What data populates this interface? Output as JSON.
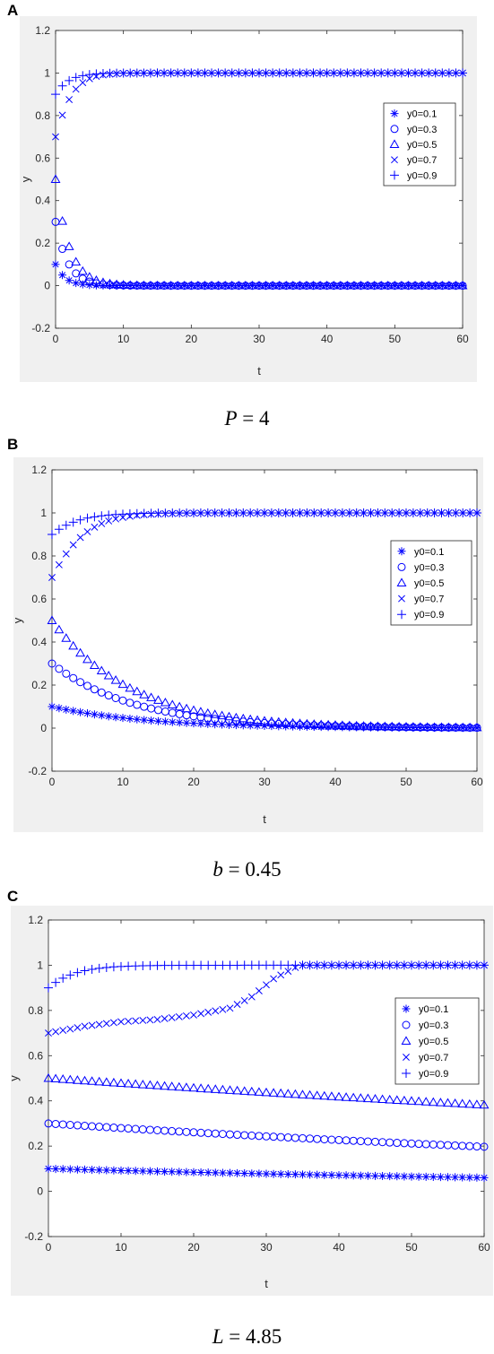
{
  "panels": [
    {
      "letter": "A",
      "caption_var": "P",
      "caption_rest": " = 4"
    },
    {
      "letter": "B",
      "caption_var": "b",
      "caption_rest": " = 0.45"
    },
    {
      "letter": "C",
      "caption_var": "L",
      "caption_rest": " = 4.85"
    }
  ],
  "colors": {
    "marker": "#0000ff",
    "figure_bg": "#f0f0f0",
    "axes_bg": "#ffffff",
    "axis": "#262626"
  },
  "chart_data": [
    {
      "type": "scatter",
      "xlabel": "t",
      "ylabel": "y",
      "xlim": [
        0,
        60
      ],
      "ylim": [
        -0.2,
        1.2
      ],
      "xticks": [
        0,
        10,
        20,
        30,
        40,
        50,
        60
      ],
      "yticks": [
        -0.2,
        0,
        0.2,
        0.4,
        0.6,
        0.8,
        1,
        1.2
      ],
      "ytick_labels": [
        "-0.2",
        "0",
        "0.2",
        "0.4",
        "0.6",
        "0.8",
        "1",
        "1.2"
      ],
      "grid": false,
      "legend_position": "right-middle",
      "x": {
        "start": 0,
        "step": 1,
        "count": 61
      },
      "series": [
        {
          "name": "y0=0.1",
          "marker": "asterisk",
          "model": {
            "y0": 0.1,
            "r": 0.7,
            "target": 0
          }
        },
        {
          "name": "y0=0.3",
          "marker": "circle",
          "model": {
            "y0": 0.3,
            "r": 0.55,
            "target": 0
          }
        },
        {
          "name": "y0=0.5",
          "marker": "triangle",
          "model": {
            "y0": 0.5,
            "r": 0.5,
            "target": 0
          }
        },
        {
          "name": "y0=0.7",
          "marker": "x",
          "model": {
            "y0": 0.7,
            "r": 0.55,
            "target": 1
          }
        },
        {
          "name": "y0=0.9",
          "marker": "plus",
          "model": {
            "y0": 0.9,
            "r": 0.55,
            "target": 1
          }
        }
      ]
    },
    {
      "type": "scatter",
      "xlabel": "t",
      "ylabel": "y",
      "xlim": [
        0,
        60
      ],
      "ylim": [
        -0.2,
        1.2
      ],
      "xticks": [
        0,
        10,
        20,
        30,
        40,
        50,
        60
      ],
      "yticks": [
        -0.2,
        0,
        0.2,
        0.4,
        0.6,
        0.8,
        1,
        1.2
      ],
      "ytick_labels": [
        "-0.2",
        "0",
        "0.2",
        "0.4",
        "0.6",
        "0.8",
        "1",
        "1.2"
      ],
      "grid": false,
      "legend_position": "right-middle",
      "x": {
        "start": 0,
        "step": 1,
        "count": 61
      },
      "series": [
        {
          "name": "y0=0.1",
          "marker": "asterisk",
          "model": {
            "y0": 0.1,
            "r": 0.075,
            "target": 0
          }
        },
        {
          "name": "y0=0.3",
          "marker": "circle",
          "model": {
            "y0": 0.3,
            "r": 0.085,
            "target": 0
          }
        },
        {
          "name": "y0=0.5",
          "marker": "triangle",
          "model": {
            "y0": 0.5,
            "r": 0.09,
            "target": 0
          }
        },
        {
          "name": "y0=0.7",
          "marker": "x",
          "model": {
            "y0": 0.7,
            "r": 0.3,
            "target": 1
          }
        },
        {
          "name": "y0=0.9",
          "marker": "plus",
          "model": {
            "y0": 0.9,
            "r": 0.3,
            "target": 1
          }
        }
      ]
    },
    {
      "type": "scatter",
      "xlabel": "t",
      "ylabel": "y",
      "xlim": [
        0,
        60
      ],
      "ylim": [
        -0.2,
        1.2
      ],
      "xticks": [
        0,
        10,
        20,
        30,
        40,
        50,
        60
      ],
      "yticks": [
        -0.2,
        0,
        0.2,
        0.4,
        0.6,
        0.8,
        1,
        1.2
      ],
      "ytick_labels": [
        "-0.2",
        "0",
        "0.2",
        "0.4",
        "0.6",
        "0.8",
        "1",
        "1.2"
      ],
      "grid": false,
      "legend_position": "right-middle",
      "x": {
        "start": 0,
        "step": 1,
        "count": 61
      },
      "series": [
        {
          "name": "y0=0.1",
          "marker": "asterisk",
          "model": {
            "y0": 0.1,
            "r": 0.0085,
            "target": 0
          }
        },
        {
          "name": "y0=0.3",
          "marker": "circle",
          "model": {
            "y0": 0.3,
            "r": 0.007,
            "target": 0
          }
        },
        {
          "name": "y0=0.5",
          "marker": "triangle",
          "model": {
            "y0": 0.5,
            "r": 0.0045,
            "target": 0
          }
        },
        {
          "name": "y0=0.7",
          "marker": "x",
          "points": [
            [
              0,
              0.7
            ],
            [
              5,
              0.73
            ],
            [
              10,
              0.75
            ],
            [
              15,
              0.76
            ],
            [
              20,
              0.78
            ],
            [
              25,
              0.81
            ],
            [
              28,
              0.86
            ],
            [
              31,
              0.94
            ],
            [
              34,
              0.99
            ],
            [
              35,
              1.0
            ],
            [
              60,
              1.0
            ]
          ]
        },
        {
          "name": "y0=0.9",
          "marker": "plus",
          "model": {
            "y0": 0.9,
            "r": 0.3,
            "target": 1
          }
        }
      ]
    }
  ]
}
